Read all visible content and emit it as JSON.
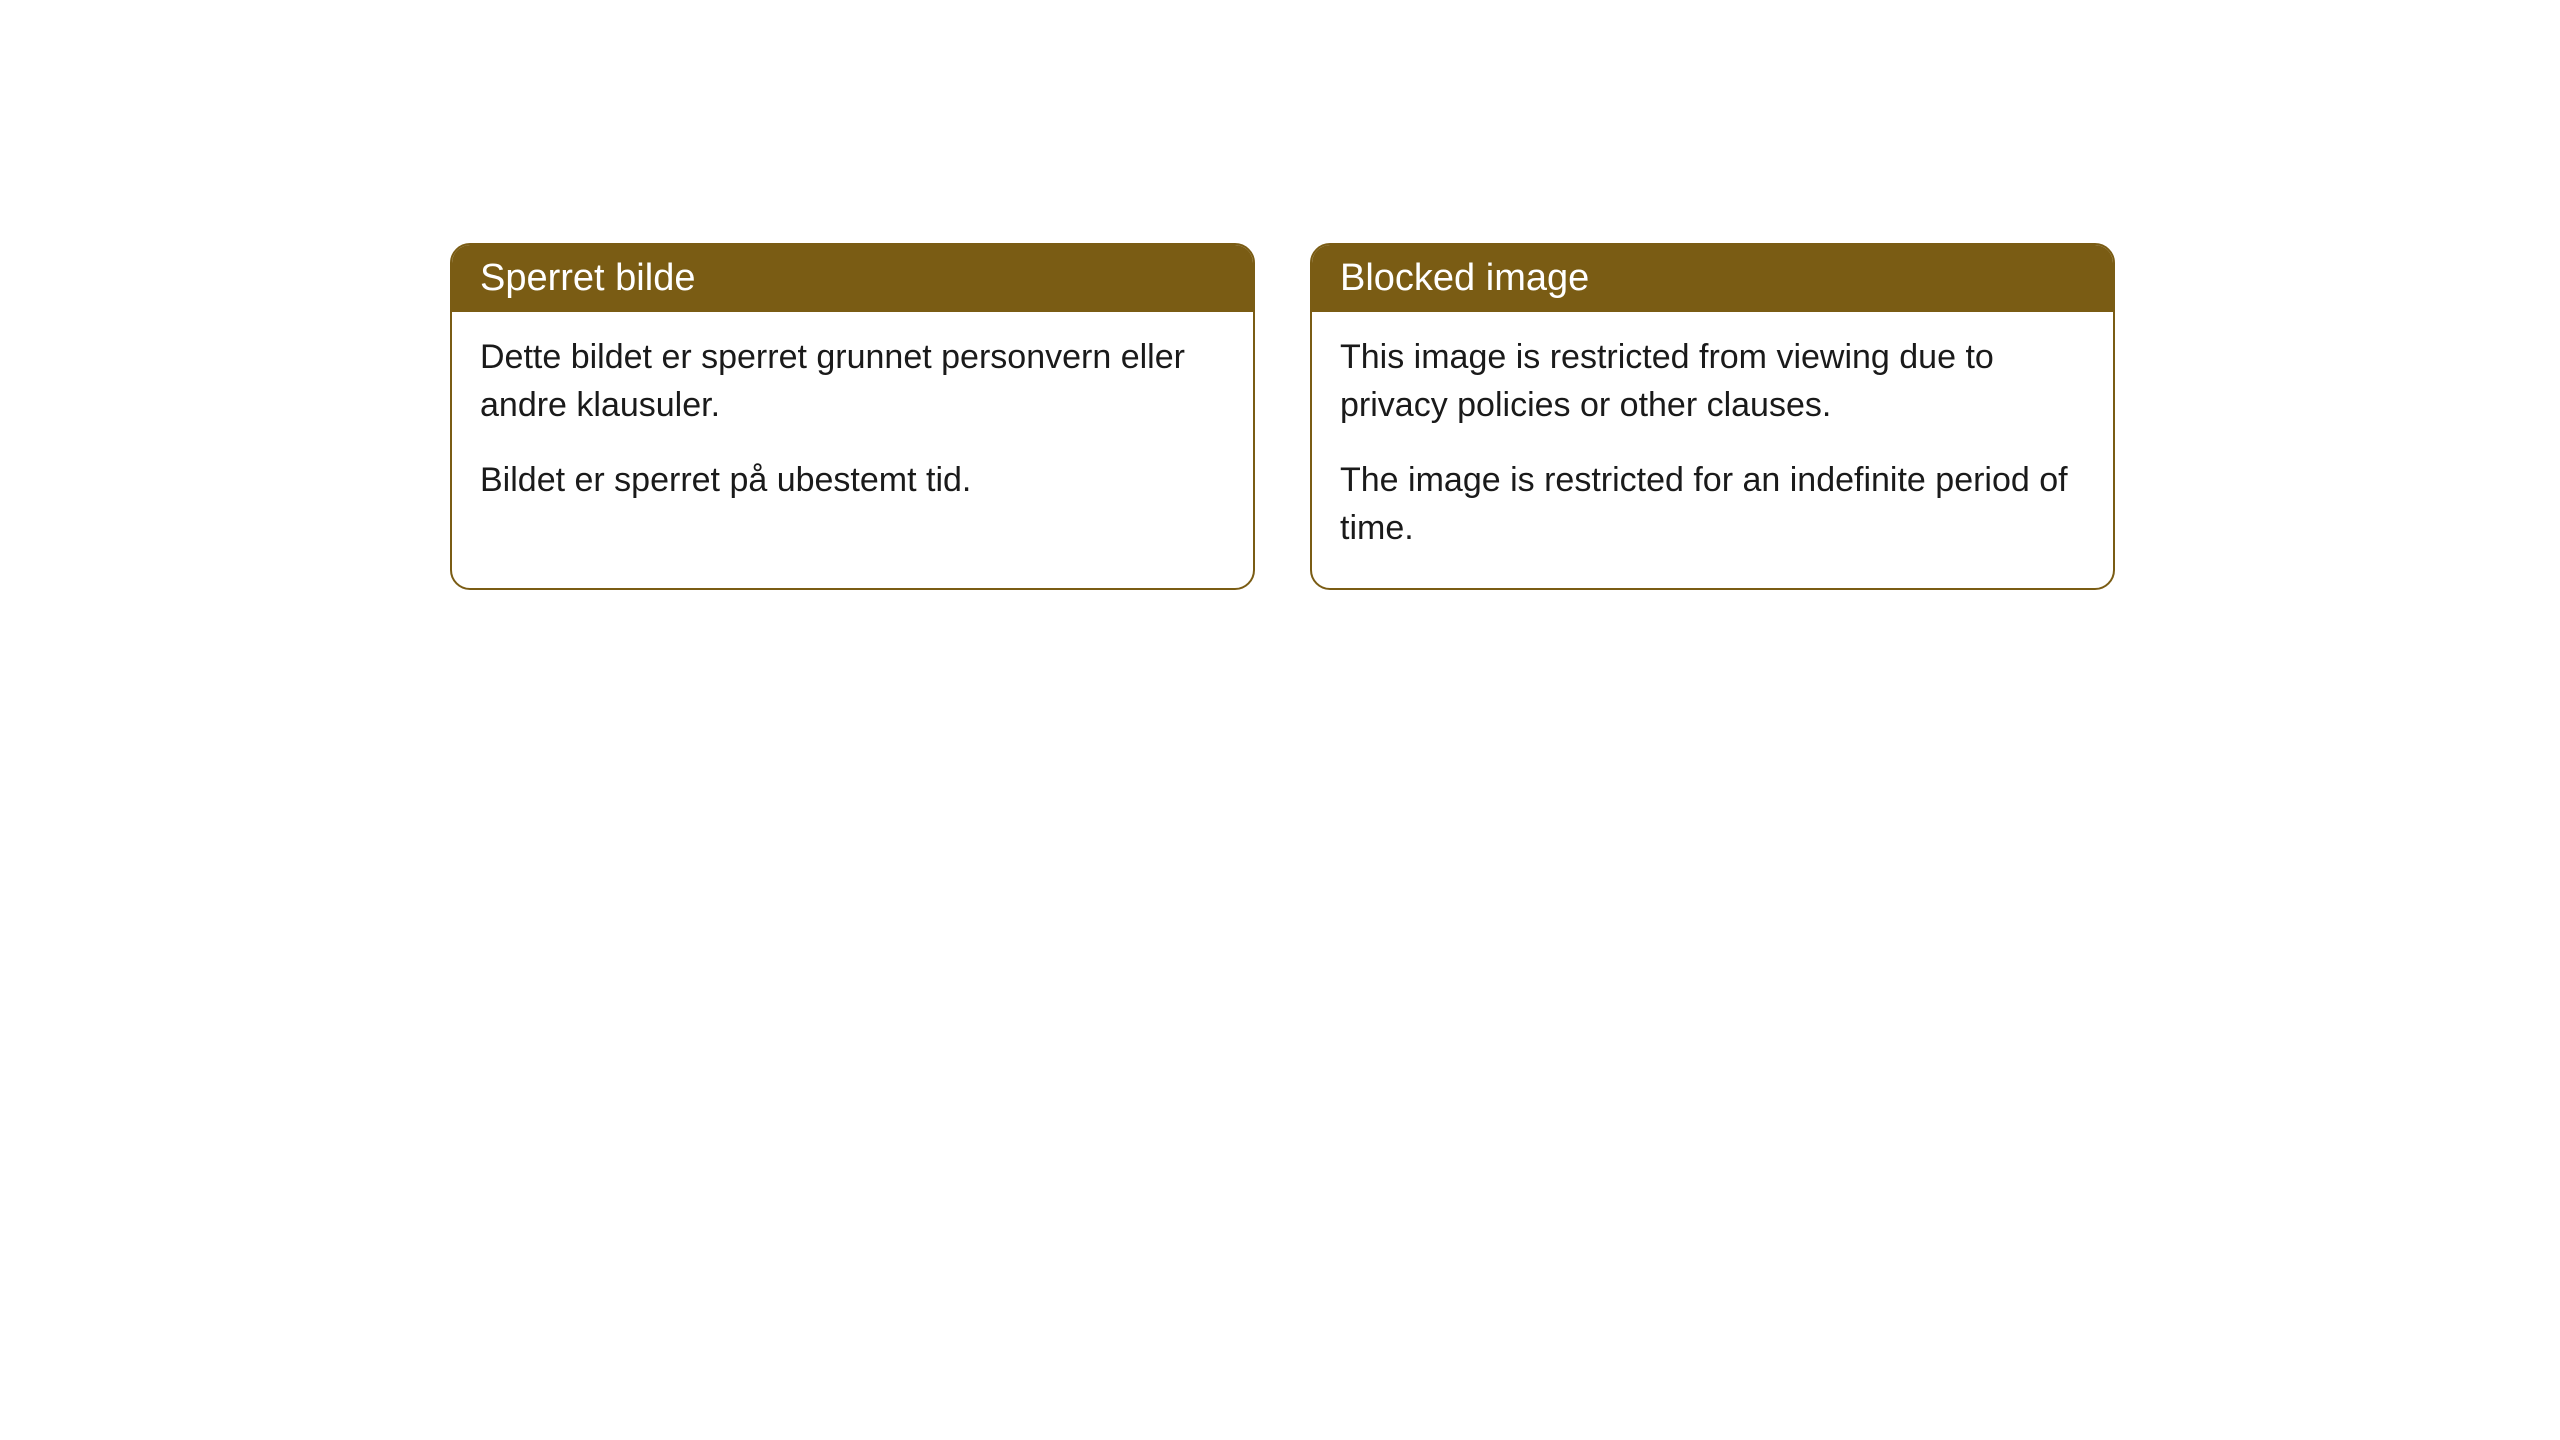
{
  "cards": [
    {
      "title": "Sperret bilde",
      "paragraph1": "Dette bildet er sperret grunnet personvern eller andre klausuler.",
      "paragraph2": "Bildet er sperret på ubestemt tid."
    },
    {
      "title": "Blocked image",
      "paragraph1": "This image is restricted from viewing due to privacy policies or other clauses.",
      "paragraph2": "The image is restricted for an indefinite period of time."
    }
  ],
  "styling": {
    "header_background_color": "#7a5c14",
    "header_text_color": "#ffffff",
    "body_background_color": "#ffffff",
    "body_text_color": "#1a1a1a",
    "border_color": "#7a5c14",
    "border_radius": "20px",
    "title_fontsize": 38,
    "body_fontsize": 34
  }
}
